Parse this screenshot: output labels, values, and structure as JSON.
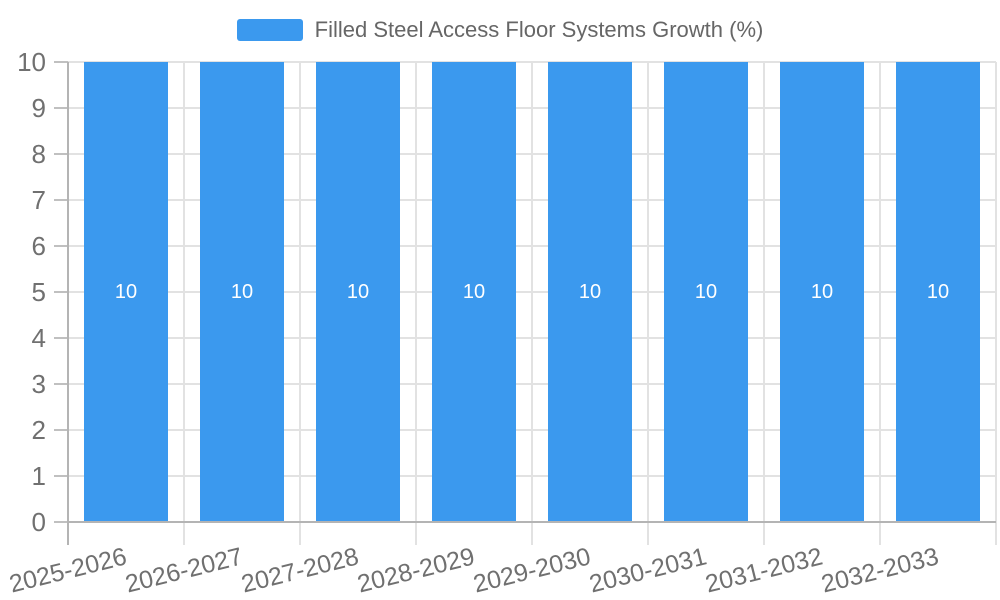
{
  "legend": {
    "label": "Filled Steel Access Floor Systems Growth (%)"
  },
  "colors": {
    "bar": "#3b99ee",
    "grid": "#e2e2e2",
    "axis": "#b4b4b4",
    "y_tick": "#c0c0c0",
    "axis_label": "#707070",
    "legend_text": "#666666",
    "bar_value_label": "#ffffff",
    "background": "#ffffff"
  },
  "chart_data": {
    "type": "bar",
    "title": "Filled Steel Access Floor Systems Growth (%)",
    "categories": [
      "2025-2026",
      "2026-2027",
      "2027-2028",
      "2028-2029",
      "2029-2030",
      "2030-2031",
      "2031-2032",
      "2032-2033"
    ],
    "values": [
      10,
      10,
      10,
      10,
      10,
      10,
      10,
      10
    ],
    "bar_labels": [
      "10",
      "10",
      "10",
      "10",
      "10",
      "10",
      "10",
      "10"
    ],
    "xlabel": "",
    "ylabel": "",
    "ylim": [
      0,
      10
    ],
    "yticks": [
      0,
      1,
      2,
      3,
      4,
      5,
      6,
      7,
      8,
      9,
      10
    ],
    "grid": true,
    "legend_position": "top-center",
    "x_label_rotation_deg": -14
  }
}
